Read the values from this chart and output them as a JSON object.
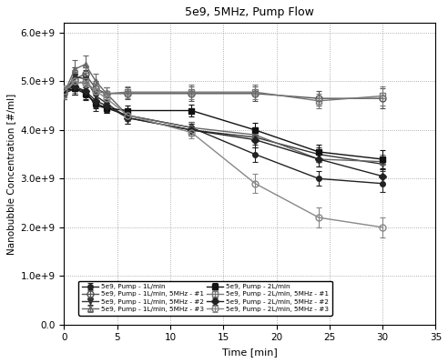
{
  "title": "5e9, 5MHz, Pump Flow",
  "xlabel": "Time [min]",
  "ylabel": "Nanobubble Concentration [#/ml]",
  "xlim": [
    0,
    35
  ],
  "ylim": [
    0.0,
    6200000000.0
  ],
  "yticks": [
    0.0,
    1000000000.0,
    2000000000.0,
    3000000000.0,
    4000000000.0,
    5000000000.0,
    6000000000.0
  ],
  "xticks": [
    0,
    5,
    10,
    15,
    20,
    25,
    30,
    35
  ],
  "series": [
    {
      "label": "5e9, Pump - 1L/min",
      "x": [
        0,
        1,
        2,
        3,
        4,
        6,
        12,
        18,
        24,
        30
      ],
      "y": [
        4750000000.0,
        4850000000.0,
        4800000000.0,
        4500000000.0,
        4450000000.0,
        4300000000.0,
        4050000000.0,
        3500000000.0,
        3000000000.0,
        2900000000.0
      ],
      "yerr": [
        120000000.0,
        120000000.0,
        120000000.0,
        100000000.0,
        100000000.0,
        100000000.0,
        120000000.0,
        150000000.0,
        150000000.0,
        180000000.0
      ],
      "color": "#222222",
      "marker": "o",
      "fillstyle": "full",
      "linestyle": "-",
      "linewidth": 1.0,
      "markersize": 4,
      "zorder": 3
    },
    {
      "label": "5e9, Pump - 1L/min, 5MHz - #1",
      "x": [
        0,
        1,
        2,
        3,
        4,
        6,
        12,
        18,
        24,
        30
      ],
      "y": [
        4750000000.0,
        5050000000.0,
        5150000000.0,
        4850000000.0,
        4750000000.0,
        4750000000.0,
        4750000000.0,
        4750000000.0,
        4650000000.0,
        4650000000.0
      ],
      "yerr": [
        120000000.0,
        180000000.0,
        180000000.0,
        150000000.0,
        120000000.0,
        120000000.0,
        150000000.0,
        150000000.0,
        150000000.0,
        200000000.0
      ],
      "color": "#555555",
      "marker": "o",
      "fillstyle": "none",
      "linestyle": "-",
      "linewidth": 1.0,
      "markersize": 5,
      "zorder": 3
    },
    {
      "label": "5e9, Pump - 1L/min, 5MHz - #2",
      "x": [
        0,
        1,
        2,
        3,
        4,
        6,
        12,
        18,
        24,
        30
      ],
      "y": [
        4750000000.0,
        5100000000.0,
        5050000000.0,
        4700000000.0,
        4550000000.0,
        4250000000.0,
        4000000000.0,
        3850000000.0,
        3500000000.0,
        3300000000.0
      ],
      "yerr": [
        120000000.0,
        180000000.0,
        180000000.0,
        120000000.0,
        120000000.0,
        120000000.0,
        120000000.0,
        150000000.0,
        150000000.0,
        150000000.0
      ],
      "color": "#333333",
      "marker": "v",
      "fillstyle": "full",
      "linestyle": "-",
      "linewidth": 1.0,
      "markersize": 4,
      "zorder": 3
    },
    {
      "label": "5e9, Pump - 1L/min, 5MHz - #3",
      "x": [
        0,
        1,
        2,
        3,
        4,
        6,
        12,
        18,
        24,
        30
      ],
      "y": [
        4750000000.0,
        5250000000.0,
        5350000000.0,
        5000000000.0,
        4750000000.0,
        4300000000.0,
        4050000000.0,
        3900000000.0,
        3400000000.0,
        3350000000.0
      ],
      "yerr": [
        120000000.0,
        180000000.0,
        180000000.0,
        150000000.0,
        120000000.0,
        120000000.0,
        120000000.0,
        150000000.0,
        150000000.0,
        150000000.0
      ],
      "color": "#666666",
      "marker": "^",
      "fillstyle": "none",
      "linestyle": "-",
      "linewidth": 1.0,
      "markersize": 5,
      "zorder": 3
    },
    {
      "label": "5e9, Pump - 2L/min",
      "x": [
        0,
        1,
        2,
        3,
        4,
        6,
        12,
        18,
        24,
        30
      ],
      "y": [
        4800000000.0,
        4850000000.0,
        4750000000.0,
        4550000000.0,
        4450000000.0,
        4400000000.0,
        4400000000.0,
        4000000000.0,
        3550000000.0,
        3400000000.0
      ],
      "yerr": [
        120000000.0,
        120000000.0,
        120000000.0,
        100000000.0,
        100000000.0,
        100000000.0,
        120000000.0,
        150000000.0,
        150000000.0,
        180000000.0
      ],
      "color": "#111111",
      "marker": "s",
      "fillstyle": "full",
      "linestyle": "-",
      "linewidth": 1.0,
      "markersize": 4,
      "zorder": 3
    },
    {
      "label": "5e9, Pump - 2L/min, 5MHz - #1",
      "x": [
        0,
        1,
        2,
        3,
        4,
        6,
        12,
        18,
        24,
        30
      ],
      "y": [
        4800000000.0,
        4950000000.0,
        5000000000.0,
        4800000000.0,
        4750000000.0,
        4780000000.0,
        4780000000.0,
        4780000000.0,
        4600000000.0,
        4700000000.0
      ],
      "yerr": [
        120000000.0,
        180000000.0,
        180000000.0,
        150000000.0,
        120000000.0,
        120000000.0,
        150000000.0,
        150000000.0,
        150000000.0,
        200000000.0
      ],
      "color": "#777777",
      "marker": "s",
      "fillstyle": "none",
      "linestyle": "-",
      "linewidth": 1.0,
      "markersize": 5,
      "zorder": 3
    },
    {
      "label": "5e9, Pump - 2L/min, 5MHz - #2",
      "x": [
        0,
        1,
        2,
        3,
        4,
        6,
        12,
        18,
        24,
        30
      ],
      "y": [
        4800000000.0,
        4900000000.0,
        4800000000.0,
        4600000000.0,
        4500000000.0,
        4250000000.0,
        4000000000.0,
        3800000000.0,
        3400000000.0,
        3050000000.0
      ],
      "yerr": [
        120000000.0,
        180000000.0,
        180000000.0,
        120000000.0,
        120000000.0,
        120000000.0,
        120000000.0,
        150000000.0,
        150000000.0,
        150000000.0
      ],
      "color": "#222222",
      "marker": "D",
      "fillstyle": "full",
      "linestyle": "-",
      "linewidth": 1.0,
      "markersize": 4,
      "zorder": 3
    },
    {
      "label": "5e9, Pump - 2L/min, 5MHz - #3",
      "x": [
        0,
        1,
        2,
        3,
        4,
        6,
        12,
        18,
        24,
        30
      ],
      "y": [
        4800000000.0,
        5000000000.0,
        4950000000.0,
        4800000000.0,
        4650000000.0,
        4300000000.0,
        3950000000.0,
        2900000000.0,
        2200000000.0,
        2000000000.0
      ],
      "yerr": [
        120000000.0,
        180000000.0,
        180000000.0,
        150000000.0,
        120000000.0,
        120000000.0,
        120000000.0,
        200000000.0,
        200000000.0,
        200000000.0
      ],
      "color": "#888888",
      "marker": "o",
      "fillstyle": "none",
      "linestyle": "-",
      "linewidth": 1.0,
      "markersize": 5,
      "zorder": 3
    }
  ]
}
